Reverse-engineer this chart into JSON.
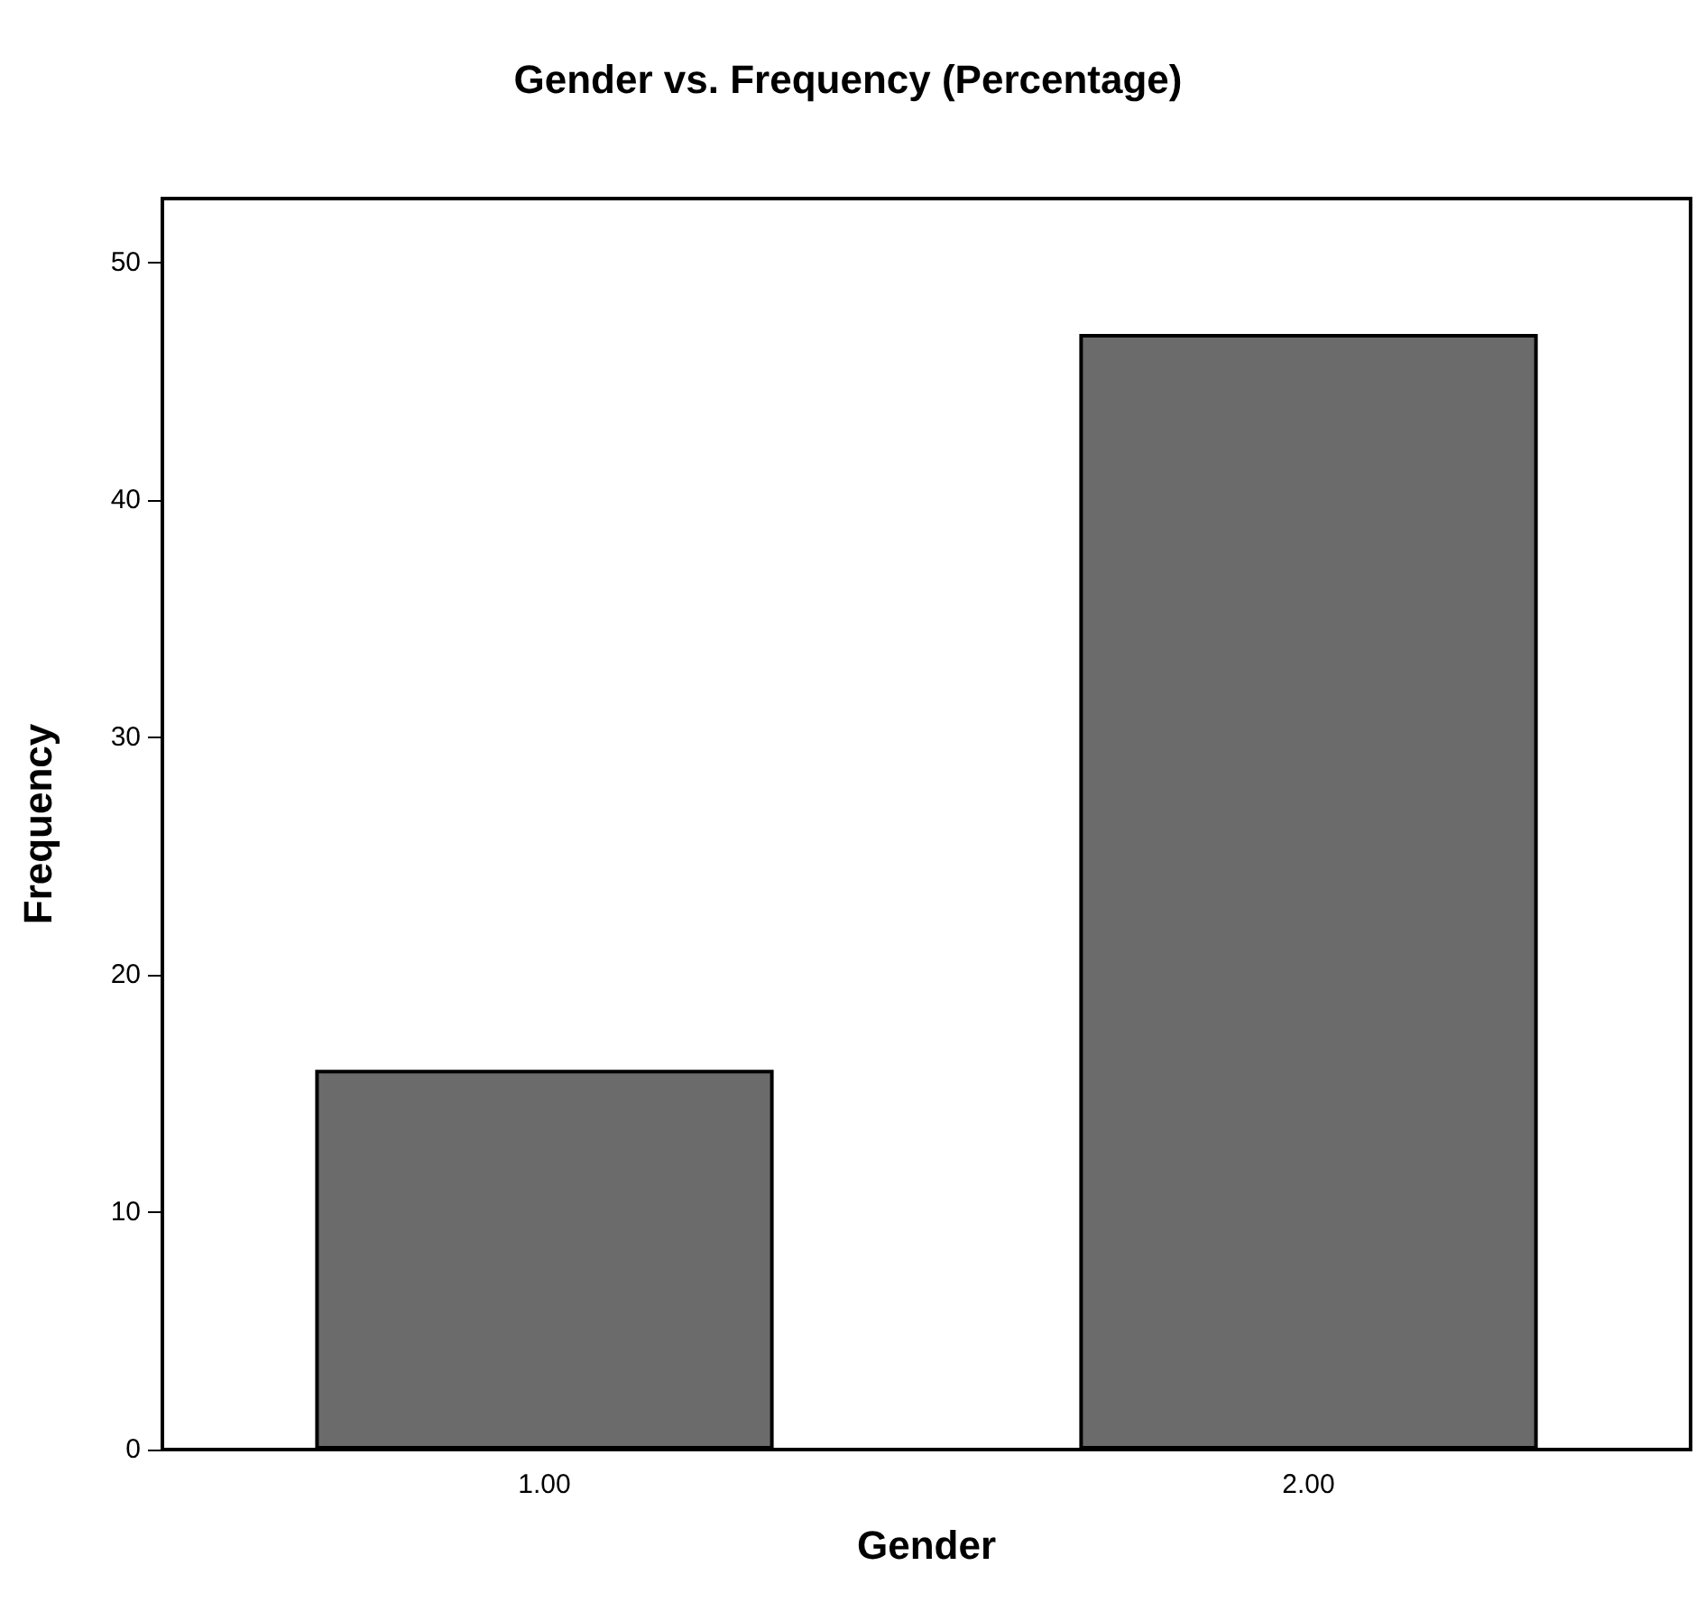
{
  "chart_data": {
    "type": "bar",
    "title": "Gender vs. Frequency (Percentage)",
    "xlabel": "Gender",
    "ylabel": "Frequency",
    "categories": [
      "1.00",
      "2.00"
    ],
    "values": [
      16,
      47
    ],
    "color": "#6b6b6b",
    "ylim": [
      0,
      52.7
    ],
    "yticks": [
      0,
      10,
      20,
      30,
      40,
      50
    ],
    "grid": false
  }
}
